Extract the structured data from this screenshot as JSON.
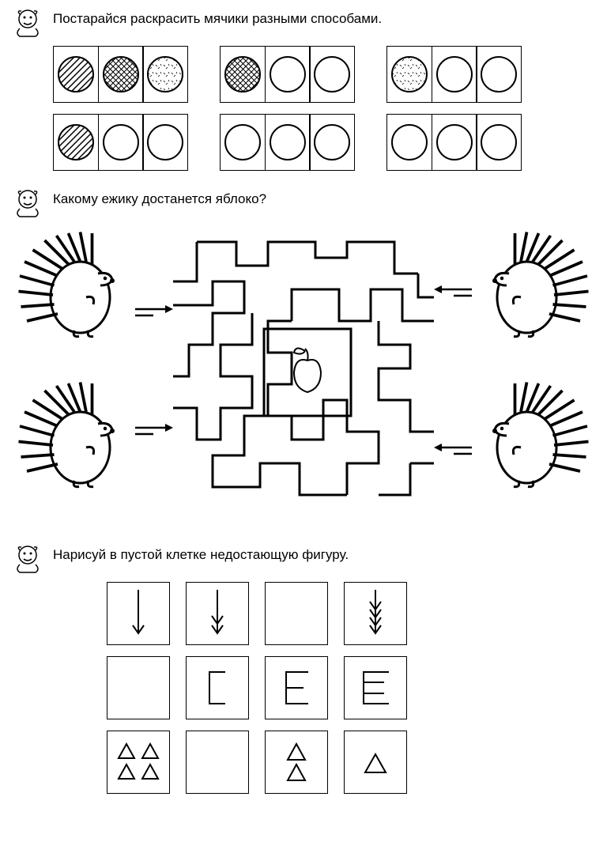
{
  "tasks": {
    "t1": {
      "prompt": "Постарайся раскрасить мячики разными способами."
    },
    "t2": {
      "prompt": "Какому ежику достанется яблоко?"
    },
    "t3": {
      "prompt": "Нарисуй в пустой клетке недостающую фигуру."
    }
  },
  "balls": {
    "rows": [
      [
        [
          "diag",
          "cross",
          "dots"
        ],
        [
          "cross",
          "blank",
          "blank"
        ],
        [
          "dots",
          "blank",
          "blank"
        ]
      ],
      [
        [
          "diag",
          "blank",
          "blank"
        ],
        [
          "blank",
          "blank",
          "blank"
        ],
        [
          "blank",
          "blank",
          "blank"
        ]
      ]
    ]
  },
  "figures": {
    "rows": [
      [
        "arrow1",
        "arrow2",
        "empty",
        "arrow4"
      ],
      [
        "empty",
        "bracket1",
        "bracket2",
        "bracket3"
      ],
      [
        "tri4",
        "empty",
        "tri2",
        "tri1"
      ]
    ]
  },
  "colors": {
    "stroke": "#000000",
    "bg": "#ffffff"
  }
}
